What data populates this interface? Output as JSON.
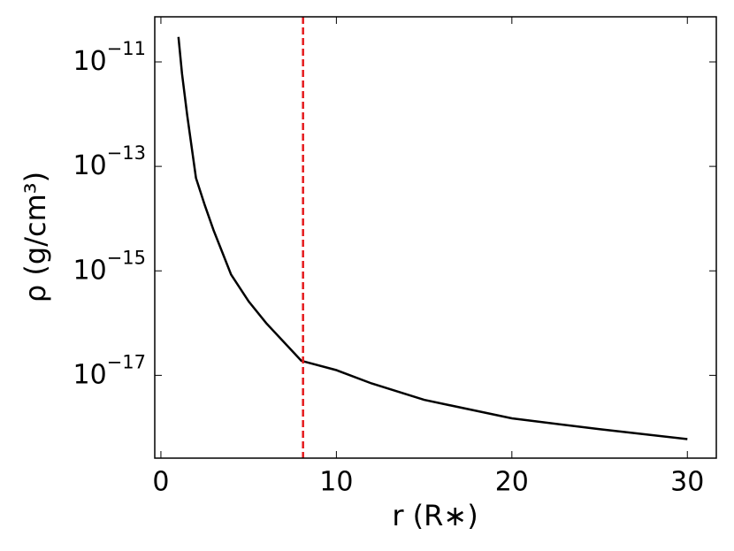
{
  "chart_data": {
    "type": "line",
    "xlabel": "r (R∗)",
    "ylabel": "ρ (g/cm³)",
    "x": [
      1,
      1.2,
      1.5,
      2,
      2.5,
      3,
      4,
      5,
      6,
      8,
      10,
      12,
      15,
      20,
      25,
      30
    ],
    "series": [
      {
        "color": "#000000",
        "values": [
          3e-11,
          6e-12,
          9.5e-13,
          6e-14,
          1.8e-14,
          6e-15,
          8.5e-16,
          2.6e-16,
          1e-16,
          1.9e-17,
          1.26e-17,
          7e-18,
          3.4e-18,
          1.5e-18,
          9.3e-19,
          6e-19
        ]
      }
    ],
    "vline": {
      "x": 8.1,
      "color": "#e41a1c"
    },
    "xlim": [
      -0.35,
      31.65
    ],
    "xticks": [
      0,
      10,
      20,
      30
    ],
    "ylim": [
      2.6e-19,
      7.3e-11
    ],
    "yscale": "log",
    "yticks": [
      {
        "value": 1e-11,
        "label": "10",
        "exponent": "−11"
      },
      {
        "value": 1e-13,
        "label": "10",
        "exponent": "−13"
      },
      {
        "value": 1e-15,
        "label": "10",
        "exponent": "−15"
      },
      {
        "value": 1e-17,
        "label": "10",
        "exponent": "−17"
      }
    ]
  }
}
